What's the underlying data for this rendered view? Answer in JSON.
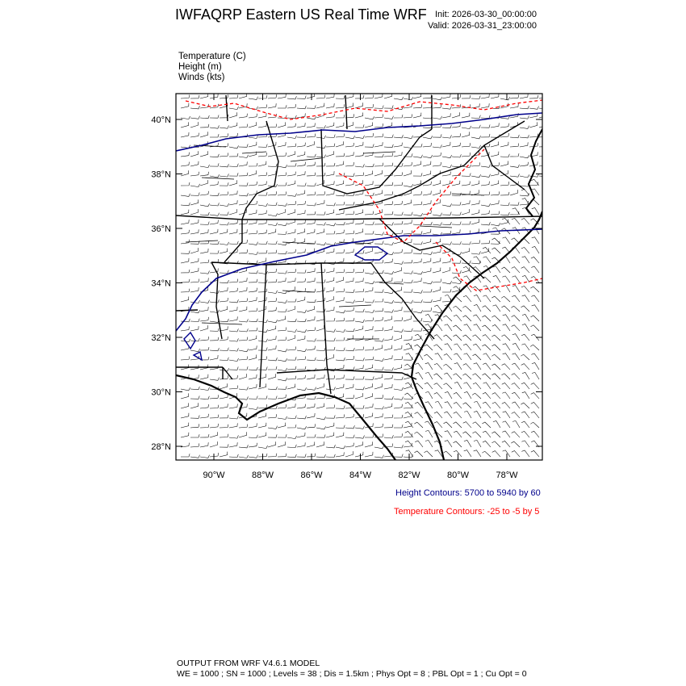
{
  "header": {
    "title": "IWFAQRP Eastern US Real Time WRF",
    "init": "Init: 2026-03-30_00:00:00",
    "valid": "Valid: 2026-03-31_23:00:00"
  },
  "fields": {
    "temperature": "Temperature   (C)",
    "height": "Height   (m)",
    "winds": "Winds   (kts)"
  },
  "map": {
    "lat_ticks": [
      "28°N",
      "30°N",
      "32°N",
      "34°N",
      "36°N",
      "38°N",
      "40°N"
    ],
    "lon_ticks": [
      "90°W",
      "88°W",
      "86°W",
      "84°W",
      "82°W",
      "80°W",
      "78°W"
    ],
    "colors": {
      "height": "#00008b",
      "temperature": "#ff0000",
      "border": "#000000"
    }
  },
  "legend": {
    "height_contours": "Height Contours: 5700 to 5940 by 60",
    "temperature_contours": "Temperature Contours: -25 to -5 by 5"
  },
  "footer": {
    "line1": "OUTPUT FROM WRF V4.6.1 MODEL",
    "line2": "WE = 1000 ; SN = 1000 ; Levels = 38 ; Dis = 1.5km ; Phys Opt = 8 ; PBL Opt = 1 ; Cu Opt = 0"
  }
}
